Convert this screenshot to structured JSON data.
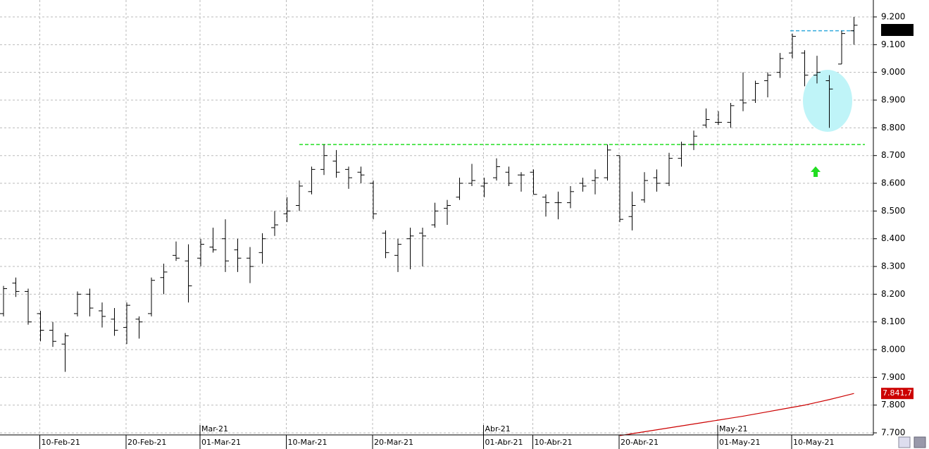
{
  "chart_data": {
    "type": "ohlc",
    "color": "#000000",
    "categories": [
      null,
      null,
      null,
      "10-Feb-21",
      null,
      null,
      null,
      null,
      null,
      null,
      "20-Feb-21",
      null,
      null,
      null,
      null,
      null,
      "01-Mar-21",
      null,
      null,
      null,
      null,
      null,
      null,
      "10-Mar-21",
      null,
      null,
      null,
      null,
      null,
      null,
      "20-Mar-21",
      null,
      null,
      null,
      null,
      null,
      null,
      null,
      null,
      "01-Abr-21",
      null,
      null,
      null,
      "10-Abr-21",
      null,
      null,
      null,
      null,
      null,
      null,
      "20-Abr-21",
      null,
      null,
      null,
      null,
      null,
      null,
      null,
      "01-May-21",
      null,
      null,
      null,
      null,
      null,
      "10-May-21",
      null,
      null,
      null,
      null,
      null
    ],
    "months": [
      null,
      null,
      null,
      null,
      null,
      null,
      null,
      null,
      null,
      null,
      null,
      null,
      null,
      null,
      null,
      null,
      "Mar-21",
      null,
      null,
      null,
      null,
      null,
      null,
      null,
      null,
      null,
      null,
      null,
      null,
      null,
      null,
      null,
      null,
      null,
      null,
      null,
      null,
      null,
      null,
      "Abr-21",
      null,
      null,
      null,
      null,
      null,
      null,
      null,
      null,
      null,
      null,
      null,
      null,
      null,
      null,
      null,
      null,
      null,
      null,
      "May-21",
      null,
      null,
      null,
      null,
      null,
      null,
      null,
      null,
      null,
      null,
      null
    ],
    "open": [
      8130,
      8240,
      8210,
      8130,
      8070,
      8020,
      8130,
      8200,
      8140,
      8110,
      8080,
      8110,
      8130,
      8260,
      8340,
      8320,
      8330,
      8370,
      8400,
      8360,
      8330,
      8350,
      8440,
      8490,
      8520,
      8570,
      8650,
      8680,
      8650,
      8640,
      8600,
      8420,
      8340,
      8400,
      8420,
      8450,
      8510,
      8550,
      8600,
      8590,
      8620,
      8640,
      8630,
      8640,
      8550,
      8530,
      8530,
      8600,
      8610,
      8620,
      8700,
      8480,
      8540,
      8620,
      8600,
      8690,
      8740,
      8810,
      8820,
      8820,
      8900,
      8900,
      8970,
      9000,
      9070,
      9070,
      8990,
      8970,
      9030,
      9150
    ],
    "high": [
      8230,
      8260,
      8220,
      8140,
      8100,
      8060,
      8210,
      8220,
      8170,
      8150,
      8170,
      8120,
      8260,
      8310,
      8390,
      8380,
      8400,
      8440,
      8470,
      8400,
      8370,
      8420,
      8500,
      8550,
      8610,
      8660,
      8740,
      8720,
      8660,
      8660,
      8610,
      8430,
      8400,
      8440,
      8440,
      8530,
      8540,
      8620,
      8670,
      8620,
      8690,
      8660,
      8640,
      8650,
      8560,
      8570,
      8590,
      8620,
      8650,
      8740,
      8700,
      8570,
      8640,
      8650,
      8710,
      8750,
      8790,
      8870,
      8860,
      8890,
      9000,
      8970,
      9000,
      9070,
      9140,
      9080,
      9060,
      8990,
      9150,
      9200
    ],
    "low": [
      8120,
      8190,
      8090,
      8030,
      8010,
      7920,
      8120,
      8120,
      8080,
      8050,
      8020,
      8040,
      8120,
      8200,
      8320,
      8170,
      8300,
      8350,
      8280,
      8280,
      8240,
      8310,
      8410,
      8460,
      8500,
      8560,
      8630,
      8620,
      8580,
      8600,
      8470,
      8330,
      8280,
      8290,
      8300,
      8440,
      8450,
      8540,
      8590,
      8550,
      8610,
      8590,
      8570,
      8560,
      8480,
      8470,
      8510,
      8570,
      8560,
      8610,
      8460,
      8430,
      8530,
      8570,
      8590,
      8660,
      8720,
      8800,
      8810,
      8800,
      8860,
      8890,
      8910,
      8980,
      9050,
      8950,
      8960,
      8800,
      9030,
      9100
    ],
    "close": [
      8220,
      8210,
      8100,
      8070,
      8030,
      8050,
      8200,
      8150,
      8120,
      8070,
      8160,
      8100,
      8250,
      8280,
      8330,
      8230,
      8380,
      8360,
      8320,
      8330,
      8300,
      8400,
      8450,
      8500,
      8590,
      8650,
      8700,
      8640,
      8620,
      8630,
      8490,
      8350,
      8380,
      8410,
      8410,
      8500,
      8520,
      8600,
      8610,
      8600,
      8660,
      8600,
      8630,
      8560,
      8530,
      8530,
      8570,
      8590,
      8620,
      8720,
      8470,
      8520,
      8610,
      8600,
      8690,
      8740,
      8770,
      8830,
      8820,
      8880,
      8890,
      8960,
      8990,
      9050,
      9130,
      8990,
      9000,
      8940,
      9140,
      9170
    ],
    "series": [
      {
        "color": "#cc0000",
        "last_label": "7.841,7",
        "values": [
          null,
          null,
          null,
          null,
          null,
          null,
          null,
          null,
          null,
          null,
          null,
          null,
          null,
          null,
          null,
          null,
          null,
          null,
          null,
          null,
          null,
          null,
          null,
          null,
          null,
          null,
          null,
          null,
          null,
          null,
          null,
          null,
          null,
          null,
          null,
          null,
          null,
          null,
          null,
          null,
          null,
          null,
          null,
          null,
          null,
          null,
          null,
          null,
          null,
          null,
          7690,
          7697,
          7704,
          7711,
          7718,
          7725,
          7732,
          7739,
          7746,
          7753,
          7760,
          7768,
          7776,
          7784,
          7792,
          7800,
          7810,
          7820,
          7831,
          7842
        ]
      }
    ],
    "hlines": [
      {
        "value": 8740,
        "color": "#22dd22"
      },
      {
        "value": 9150,
        "color": "#33aadd"
      }
    ],
    "ylim": [
      7690,
      9260
    ],
    "yticks": [
      {
        "value": 7700,
        "label": "7.700"
      },
      {
        "value": 7800,
        "label": "7.800"
      },
      {
        "value": 7900,
        "label": "7.900"
      },
      {
        "value": 8000,
        "label": "8.000"
      },
      {
        "value": 8100,
        "label": "8.100"
      },
      {
        "value": 8200,
        "label": "8.200"
      },
      {
        "value": 8300,
        "label": "8.300"
      },
      {
        "value": 8400,
        "label": "8.400"
      },
      {
        "value": 8500,
        "label": "8.500"
      },
      {
        "value": 8600,
        "label": "8.600"
      },
      {
        "value": 8700,
        "label": "8.700"
      },
      {
        "value": 8800,
        "label": "8.800"
      },
      {
        "value": 8900,
        "label": "8.900"
      },
      {
        "value": 9000,
        "label": "9.000"
      },
      {
        "value": 9100,
        "label": "9.100"
      },
      {
        "value": 9200,
        "label": "9.200"
      }
    ],
    "grid": true
  }
}
